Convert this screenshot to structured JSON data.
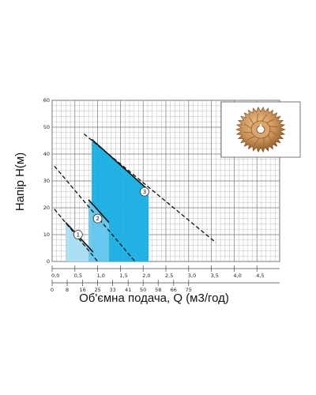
{
  "chart_data": {
    "type": "line",
    "ylabel": "Напір H(м)",
    "xlabel": "Об'ємна подача, Q (м3/год)",
    "ylim": [
      0,
      60
    ],
    "xlim": [
      0,
      5
    ],
    "y_ticks": [
      "0",
      "10",
      "20",
      "30",
      "40",
      "50",
      "60"
    ],
    "x_ticks": [
      "0,0",
      "0,5",
      "1,0",
      "1,5",
      "2,0",
      "2,5",
      "3,0",
      "3,5",
      "4,0",
      "4,5"
    ],
    "x_secondary_ticks": [
      {
        "x": 0.0,
        "label": "0"
      },
      {
        "x": 0.33,
        "label": "8"
      },
      {
        "x": 0.67,
        "label": "16"
      },
      {
        "x": 1.0,
        "label": "25"
      },
      {
        "x": 1.33,
        "label": "33"
      },
      {
        "x": 1.67,
        "label": "41"
      },
      {
        "x": 2.0,
        "label": "50"
      },
      {
        "x": 2.33,
        "label": "58"
      },
      {
        "x": 2.67,
        "label": "66"
      },
      {
        "x": 3.0,
        "label": "75"
      }
    ],
    "grid": true,
    "series": [
      {
        "name": "1",
        "color": "#a9ddf3",
        "dashed_line": [
          [
            0.05,
            19.5
          ],
          [
            1.0,
            0
          ]
        ],
        "solid_line": [
          [
            0.3,
            14.5
          ],
          [
            0.9,
            3.5
          ]
        ],
        "band": [
          0.3,
          0.9
        ],
        "marker": [
          0.57,
          10
        ]
      },
      {
        "name": "2",
        "color": "#6cc8ec",
        "dashed_line": [
          [
            0.05,
            35.5
          ],
          [
            1.82,
            0
          ]
        ],
        "solid_line": [
          [
            0.8,
            23
          ],
          [
            1.25,
            14.5
          ]
        ],
        "band": [
          0.8,
          1.25
        ],
        "marker": [
          1.0,
          16
        ]
      },
      {
        "name": "3",
        "color": "#16aee1",
        "dashed_line": [
          [
            0.7,
            47.5
          ],
          [
            3.6,
            7
          ]
        ],
        "solid_line": [
          [
            0.87,
            45.5
          ],
          [
            2.12,
            26.5
          ]
        ],
        "band": [
          0.87,
          2.12
        ],
        "marker": [
          2.03,
          26
        ]
      }
    ]
  },
  "image": {
    "subject": "impeller-photo"
  }
}
